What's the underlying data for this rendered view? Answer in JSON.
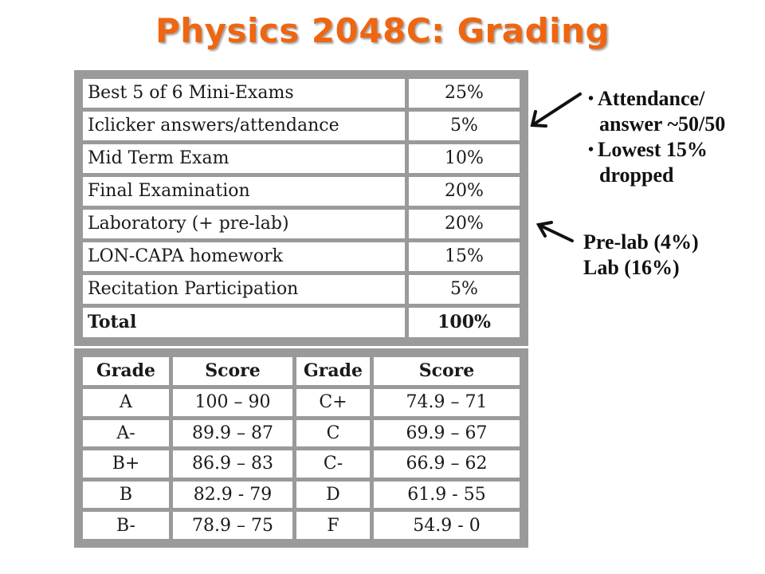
{
  "title": "Physics 2048C: Grading",
  "weights": [
    {
      "item": "Best 5 of 6 Mini-Exams",
      "pct": "25%"
    },
    {
      "item": "Iclicker answers/attendance",
      "pct": "5%"
    },
    {
      "item": "Mid Term Exam",
      "pct": "10%"
    },
    {
      "item": "Final Examination",
      "pct": "20%"
    },
    {
      "item": "Laboratory (+ pre-lab)",
      "pct": "20%"
    },
    {
      "item": "LON-CAPA homework",
      "pct": "15%"
    },
    {
      "item": "Recitation Participation",
      "pct": "5%"
    },
    {
      "item": "Total",
      "pct": "100%"
    }
  ],
  "grade_scale": {
    "headers": [
      "Grade",
      "Score",
      "Grade",
      "Score"
    ],
    "rows": [
      [
        "A",
        "100 – 90",
        "C+",
        "74.9 – 71"
      ],
      [
        "A-",
        "89.9 – 87",
        "C",
        "69.9 – 67"
      ],
      [
        "B+",
        "86.9 – 83",
        "C-",
        "66.9 – 62"
      ],
      [
        "B",
        "82.9 - 79",
        "D",
        "61.9 - 55"
      ],
      [
        "B-",
        "78.9 – 75",
        "F",
        "54.9 - 0"
      ]
    ]
  },
  "notes": {
    "clicker": [
      "Attendance/",
      "answer ~50/50",
      "Lowest 15%",
      "dropped"
    ],
    "lab": [
      "Pre-lab (4%)",
      "Lab (16%)"
    ]
  },
  "colors": {
    "title": "#ee6611",
    "table_border": "#9a9a9a"
  }
}
